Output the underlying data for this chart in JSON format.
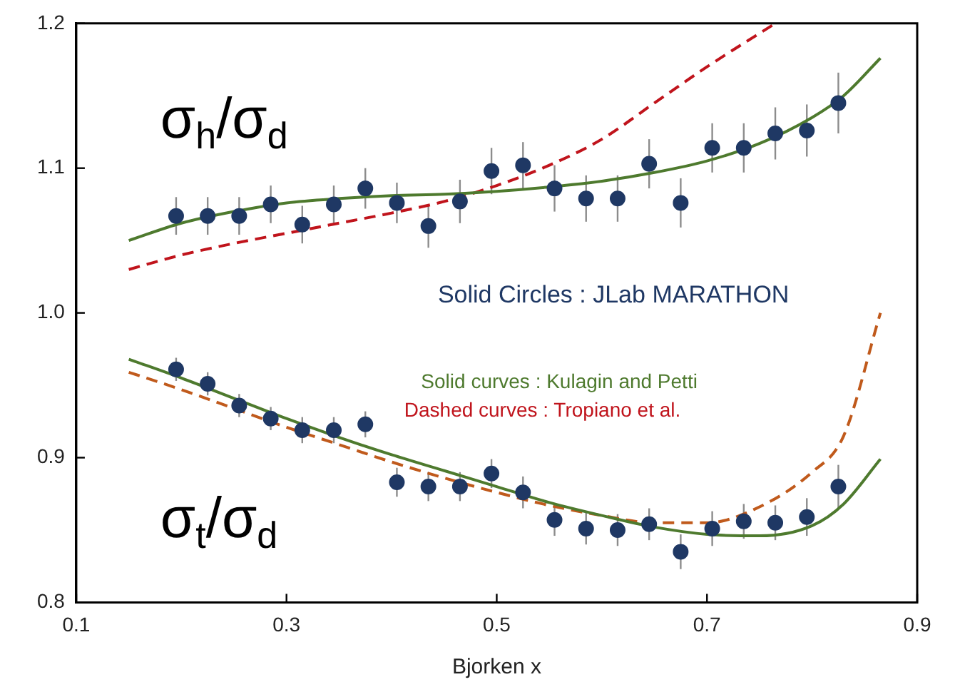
{
  "chart_data": {
    "type": "scatter",
    "xlabel": "Bjorken x",
    "xlim": [
      0.1,
      0.9
    ],
    "xticks": [
      0.1,
      0.3,
      0.5,
      0.7,
      0.9
    ],
    "ylim": [
      0.8,
      1.2
    ],
    "yticks": [
      0.8,
      0.9,
      {
        "value": 1.0,
        "label": "1.0"
      },
      1.1,
      1.2
    ],
    "grid": false,
    "legend": false,
    "annotations": [
      "σ$_{h}$/σ$_{d}$",
      "σ$_{t}$/σ$_{d}$",
      "Solid Circles : JLab MARATHON",
      "Solid curves : Kulagin and Petti",
      "Dashed curves : Tropiano et al."
    ],
    "series": [
      {
        "marker": "circle",
        "color": "#1f3864",
        "x": [
          0.195,
          0.225,
          0.255,
          0.285,
          0.315,
          0.345,
          0.375,
          0.405,
          0.435,
          0.465,
          0.495,
          0.525,
          0.555,
          0.585,
          0.615,
          0.645,
          0.675,
          0.705,
          0.735,
          0.765,
          0.795,
          0.825
        ],
        "values": [
          1.067,
          1.067,
          1.067,
          1.075,
          1.061,
          1.075,
          1.086,
          1.076,
          1.06,
          1.077,
          1.098,
          1.102,
          1.086,
          1.079,
          1.079,
          1.103,
          1.076,
          1.114,
          1.114,
          1.124,
          1.126,
          1.145
        ],
        "errors": [
          0.013,
          0.013,
          0.013,
          0.013,
          0.013,
          0.013,
          0.014,
          0.014,
          0.015,
          0.015,
          0.016,
          0.016,
          0.016,
          0.016,
          0.016,
          0.017,
          0.017,
          0.017,
          0.017,
          0.018,
          0.018,
          0.021
        ]
      },
      {
        "marker": "circle",
        "color": "#1f3864",
        "x": [
          0.195,
          0.225,
          0.255,
          0.285,
          0.315,
          0.345,
          0.375,
          0.405,
          0.435,
          0.465,
          0.495,
          0.525,
          0.555,
          0.585,
          0.615,
          0.645,
          0.675,
          0.705,
          0.735,
          0.765,
          0.795,
          0.825
        ],
        "values": [
          0.961,
          0.951,
          0.936,
          0.927,
          0.919,
          0.919,
          0.923,
          0.883,
          0.88,
          0.88,
          0.889,
          0.876,
          0.857,
          0.851,
          0.85,
          0.854,
          0.835,
          0.851,
          0.856,
          0.855,
          0.859,
          0.88
        ],
        "errors": [
          0.008,
          0.008,
          0.008,
          0.008,
          0.009,
          0.009,
          0.009,
          0.01,
          0.01,
          0.01,
          0.01,
          0.011,
          0.011,
          0.011,
          0.011,
          0.011,
          0.012,
          0.012,
          0.012,
          0.012,
          0.013,
          0.015
        ]
      },
      {
        "type": "line",
        "color": "#4e7a2e",
        "line_style": "solid",
        "x": [
          0.15,
          0.2,
          0.25,
          0.3,
          0.35,
          0.4,
          0.45,
          0.5,
          0.55,
          0.6,
          0.65,
          0.7,
          0.75,
          0.8,
          0.83,
          0.865
        ],
        "values": [
          1.05,
          1.062,
          1.07,
          1.076,
          1.079,
          1.081,
          1.082,
          1.084,
          1.087,
          1.091,
          1.097,
          1.105,
          1.117,
          1.135,
          1.15,
          1.176
        ]
      },
      {
        "type": "line",
        "color": "#c0141c",
        "line_style": "dashed",
        "x": [
          0.15,
          0.2,
          0.25,
          0.3,
          0.35,
          0.4,
          0.45,
          0.5,
          0.55,
          0.6,
          0.65,
          0.7,
          0.765
        ],
        "values": [
          1.03,
          1.04,
          1.048,
          1.055,
          1.062,
          1.069,
          1.077,
          1.088,
          1.102,
          1.12,
          1.145,
          1.17,
          1.2
        ]
      },
      {
        "type": "line",
        "color": "#4e7a2e",
        "line_style": "solid",
        "x": [
          0.15,
          0.2,
          0.25,
          0.3,
          0.35,
          0.4,
          0.45,
          0.5,
          0.55,
          0.6,
          0.65,
          0.7,
          0.75,
          0.8,
          0.83,
          0.865
        ],
        "values": [
          0.968,
          0.955,
          0.941,
          0.927,
          0.914,
          0.902,
          0.891,
          0.88,
          0.869,
          0.86,
          0.852,
          0.847,
          0.846,
          0.853,
          0.868,
          0.899
        ]
      },
      {
        "type": "line",
        "color": "#c05a1c",
        "line_style": "dashed",
        "x": [
          0.15,
          0.2,
          0.25,
          0.3,
          0.35,
          0.4,
          0.45,
          0.5,
          0.55,
          0.6,
          0.65,
          0.7,
          0.75,
          0.8,
          0.83,
          0.865
        ],
        "values": [
          0.959,
          0.947,
          0.934,
          0.921,
          0.909,
          0.897,
          0.886,
          0.876,
          0.867,
          0.86,
          0.855,
          0.855,
          0.866,
          0.89,
          0.915,
          1.0
        ]
      }
    ]
  }
}
